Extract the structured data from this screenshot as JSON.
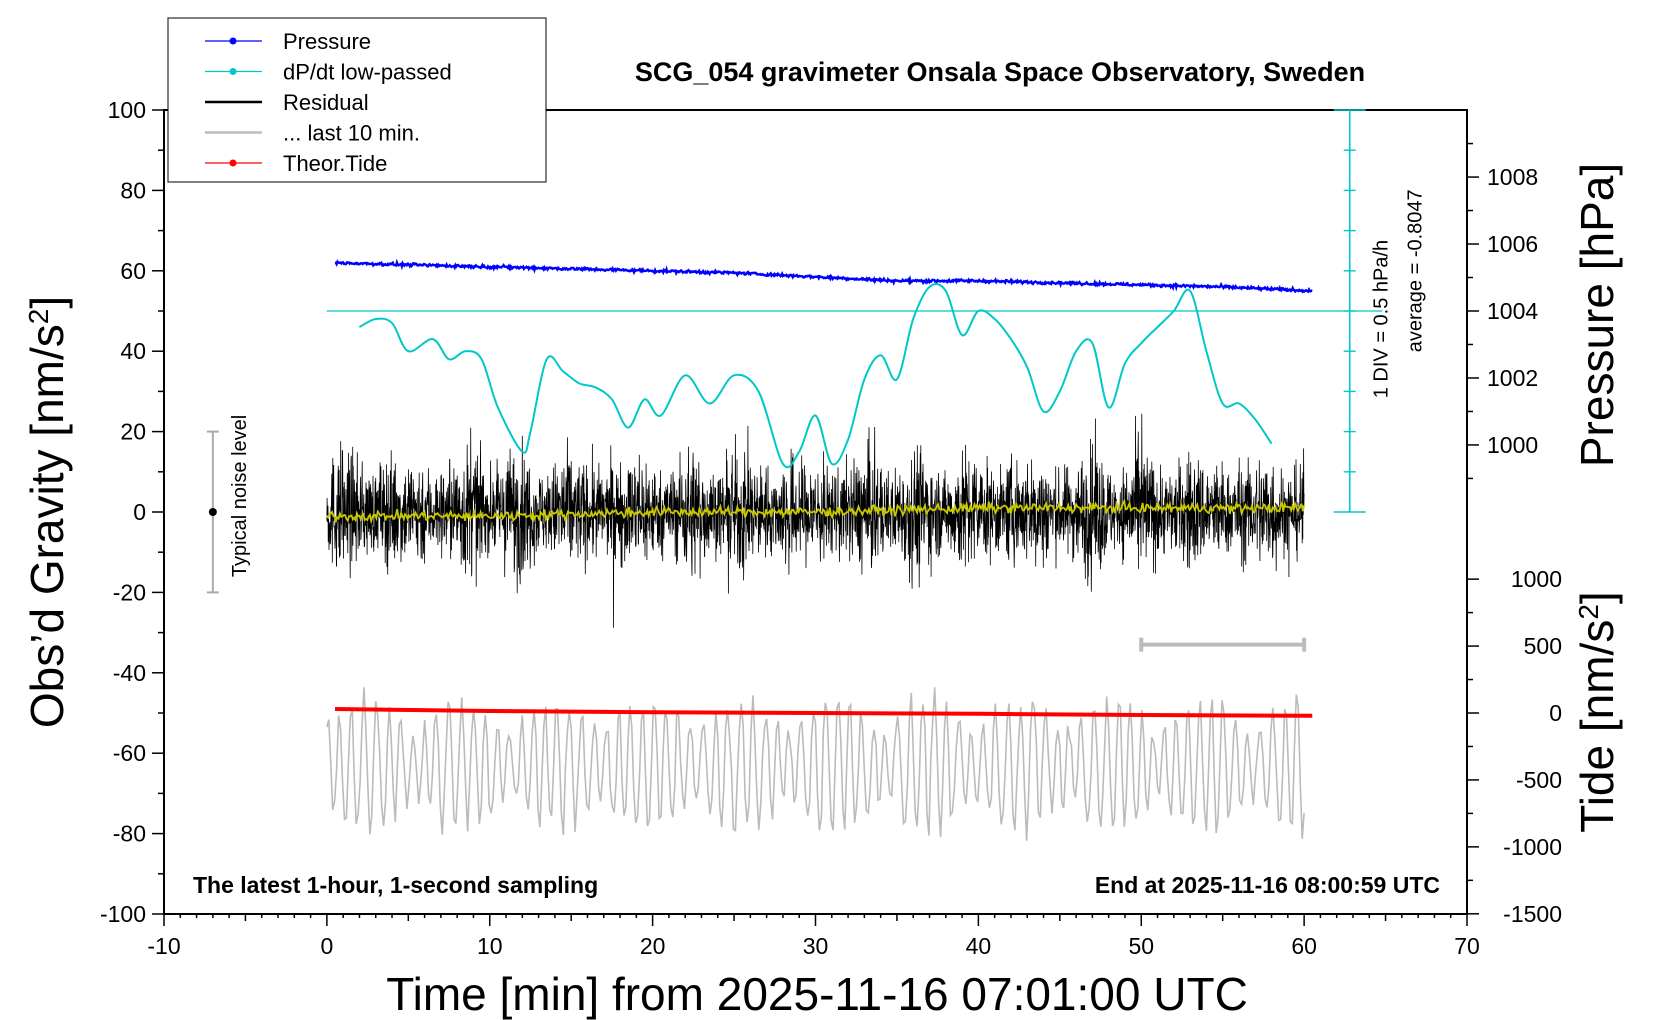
{
  "chart_data": {
    "type": "line",
    "title": "SCG_054 gravimeter Onsala Space Observatory, Sweden",
    "xlabel": "Time [min] from 2025-11-16 07:01:00 UTC",
    "ylabel_left_main": "Obs’d Gravity [nm/s",
    "ylabel_left_sup": "2",
    "ylabel_left_end": "]",
    "ylabel_right_top": "Pressure [hPa]",
    "ylabel_right_bottom_main": "Tide [nm/s",
    "ylabel_right_bottom_sup": "2",
    "ylabel_right_bottom_end": "]",
    "xlim": [
      -10,
      70
    ],
    "ylim": [
      -100,
      100
    ],
    "x_ticks": [
      "-10",
      "0",
      "10",
      "20",
      "30",
      "40",
      "50",
      "60",
      "70"
    ],
    "x_tick_values": [
      -10,
      0,
      10,
      20,
      30,
      40,
      50,
      60,
      70
    ],
    "y_ticks": [
      "100",
      "80",
      "60",
      "40",
      "20",
      "0",
      "-20",
      "-40",
      "-60",
      "-80",
      "-100"
    ],
    "y_tick_values": [
      100,
      80,
      60,
      40,
      20,
      0,
      -20,
      -40,
      -60,
      -80,
      -100
    ],
    "pressure_axis": {
      "ticks": [
        "1008",
        "1006",
        "1004",
        "1002",
        "1000"
      ],
      "tick_values": [
        1008,
        1006,
        1004,
        1002,
        1000
      ],
      "gravity_at_1004": 50,
      "gravity_per_hpa": 8.33
    },
    "tide_axis": {
      "ticks": [
        "1000",
        "500",
        "0",
        "-500",
        "-1000",
        "-1500"
      ],
      "tick_values": [
        1000,
        500,
        0,
        -500,
        -1000,
        -1500
      ],
      "gravity_at_0": -50,
      "gravity_per_unit": 0.0333
    },
    "legend": {
      "placement": "top-left",
      "entries": [
        {
          "label": "Pressure",
          "color": "#0000ff",
          "marker": true
        },
        {
          "label": "dP/dt low-passed",
          "color": "#00c8c8",
          "marker": true
        },
        {
          "label": "Residual",
          "color": "#000000",
          "marker": false
        },
        {
          "label": "... last 10 min.",
          "color": "#bbbbbb",
          "marker": false
        },
        {
          "label": "Theor.Tide",
          "color": "#ff0000",
          "marker": true
        }
      ]
    },
    "noise_bar": {
      "label": "Typical noise level",
      "x": -7,
      "y_low": -20,
      "y_high": 20,
      "y_center": 0
    },
    "dpdt_scale": {
      "label1": "1 DIV = 0.5 hPa/h",
      "label2": "average = -0.8047",
      "x": 62.8,
      "y_bottom": 0,
      "y_top": 100,
      "baseline_y": 50,
      "divisions": 10
    },
    "last10_bar": {
      "x_start": 50,
      "x_end": 60,
      "y": -33
    },
    "annotation_left": "The latest 1-hour, 1-second sampling",
    "annotation_right": "End at 2025-11-16 08:00:59 UTC",
    "series": [
      {
        "name": "Pressure",
        "color": "#0000ff",
        "x": [
          0.5,
          5,
          10,
          15,
          20,
          25,
          30,
          35,
          40,
          45,
          50,
          55,
          60.5
        ],
        "values": [
          62,
          61.5,
          61,
          60.5,
          60,
          59.5,
          58.5,
          57.5,
          57.5,
          57,
          56.5,
          56,
          55
        ]
      },
      {
        "name": "dP/dt low-passed",
        "color": "#00c8c8",
        "x": [
          2,
          3,
          4,
          5,
          6.5,
          7.5,
          8.5,
          9.5,
          10.5,
          12,
          12.5,
          13.5,
          14.5,
          15.5,
          16.5,
          17.5,
          18.5,
          19.5,
          20.5,
          22,
          23.5,
          25,
          26.5,
          28,
          29,
          30,
          31,
          32,
          33,
          34,
          35,
          36,
          37,
          38,
          39,
          40,
          41,
          42,
          43,
          44,
          45,
          46,
          47,
          48,
          49,
          50,
          51,
          52,
          53,
          54,
          55,
          56,
          57,
          58
        ],
        "values": [
          46,
          48,
          47,
          40,
          43,
          38,
          40,
          38,
          26,
          15,
          20,
          38,
          35,
          32,
          31,
          28,
          21,
          28,
          24,
          34,
          27,
          34,
          30,
          12,
          15,
          24,
          12,
          18,
          33,
          39,
          33,
          48,
          56,
          55,
          44,
          50,
          48,
          43,
          36,
          25,
          30,
          40,
          42,
          26,
          37,
          42,
          46,
          50,
          55,
          40,
          27,
          27,
          23,
          17
        ]
      },
      {
        "name": "Residual",
        "color": "#000000",
        "x_start": 0,
        "x_end": 60,
        "amplitude": 22,
        "min": -33,
        "max": 27
      },
      {
        "name": "Residual smoothed",
        "color": "#c8c800",
        "x": [
          0,
          10,
          20,
          30,
          40,
          50,
          60
        ],
        "values": [
          -1,
          -1,
          0,
          0,
          1,
          1,
          1
        ]
      },
      {
        "name": "... last 10 min.",
        "color": "#bbbbbb",
        "x_start": 0,
        "x_end": 60,
        "center": -63,
        "amplitude": 17,
        "min": -83,
        "max": -42
      },
      {
        "name": "Theor.Tide",
        "color": "#ff0000",
        "x": [
          0.5,
          10,
          20,
          30,
          40,
          50,
          60.5
        ],
        "values": [
          -49,
          -49.5,
          -49.8,
          -50,
          -50.2,
          -50.5,
          -50.7
        ]
      }
    ]
  }
}
